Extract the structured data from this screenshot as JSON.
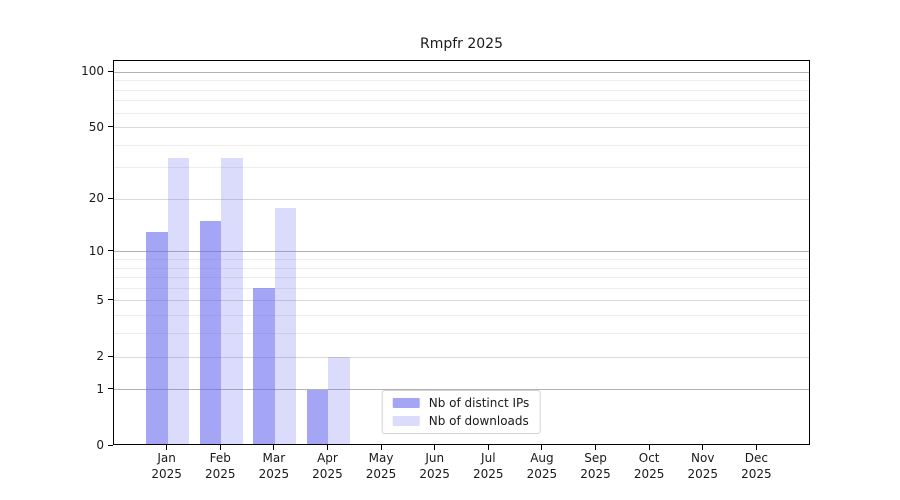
{
  "title": "Rmpfr 2025",
  "chart_data": {
    "type": "bar",
    "title": "Rmpfr 2025",
    "scale": "log1p",
    "categories": [
      "Jan",
      "Feb",
      "Mar",
      "Apr",
      "May",
      "Jun",
      "Jul",
      "Aug",
      "Sep",
      "Oct",
      "Nov",
      "Dec"
    ],
    "x_year_label": "2025",
    "series": [
      {
        "name": "Nb of distinct IPs",
        "color": "rgba(100,100,240,0.58)",
        "values": [
          13,
          15,
          6,
          1,
          0,
          0,
          0,
          0,
          0,
          0,
          0,
          0
        ]
      },
      {
        "name": "Nb of downloads",
        "color": "rgba(100,100,240,0.23)",
        "values": [
          34,
          34,
          18,
          2,
          0,
          0,
          0,
          0,
          0,
          0,
          0,
          0
        ]
      }
    ],
    "y_ticks": [
      0,
      1,
      2,
      5,
      10,
      20,
      50,
      100
    ],
    "y_minor_gridlines": [
      3,
      4,
      6,
      7,
      8,
      9,
      30,
      40,
      60,
      70,
      80,
      90
    ],
    "ylim": [
      0,
      115
    ],
    "grid": true,
    "legend_position": "lower center",
    "colors": {
      "grid_major": "#b3b3b3",
      "grid_mid": "#d9d9d9",
      "grid_minor": "#ececec",
      "axis": "#000000",
      "text": "#1a1a1a"
    }
  }
}
